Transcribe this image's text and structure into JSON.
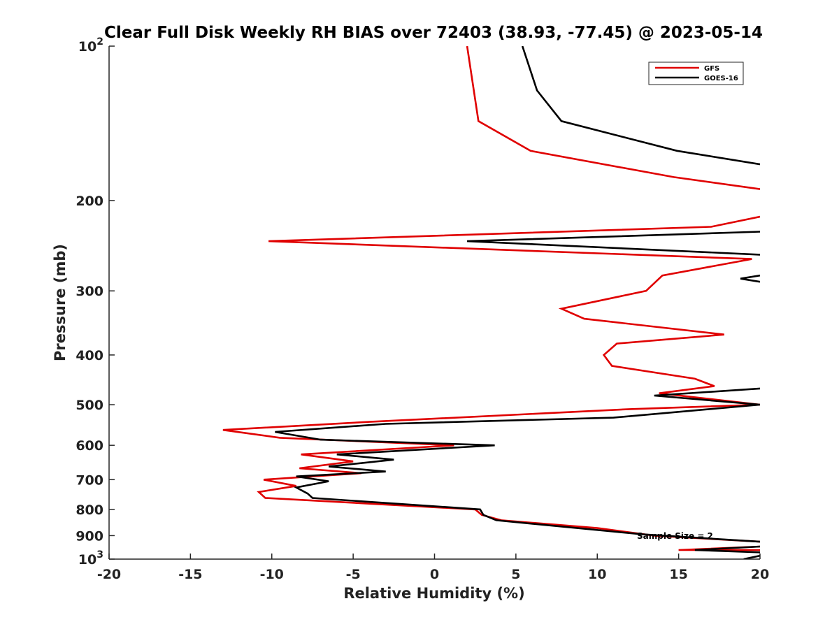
{
  "chart_data": {
    "type": "line",
    "title": "Clear Full Disk Weekly RH BIAS over 72403 (38.93, -77.45) @ 2023-05-14",
    "xlabel": "Relative Humidity (%)",
    "ylabel": "Pressure (mb)",
    "xlim": [
      -20,
      20
    ],
    "ylim": [
      100,
      1000
    ],
    "y_scale": "log",
    "y_reversed": true,
    "x_ticks": [
      "-20",
      "-15",
      "-10",
      "-5",
      "0",
      "5",
      "10",
      "15",
      "20"
    ],
    "y_ticks": [
      {
        "value": 100,
        "base": "10",
        "exp": "2"
      },
      {
        "value": 200,
        "label": "200"
      },
      {
        "value": 300,
        "label": "300"
      },
      {
        "value": 400,
        "label": "400"
      },
      {
        "value": 500,
        "label": "500"
      },
      {
        "value": 600,
        "label": "600"
      },
      {
        "value": 700,
        "label": "700"
      },
      {
        "value": 800,
        "label": "800"
      },
      {
        "value": 900,
        "label": "900"
      },
      {
        "value": 1000,
        "base": "10",
        "exp": "3"
      }
    ],
    "grid": false,
    "legend_position": "top-right",
    "annotation": "Sample Size = 2",
    "series": [
      {
        "name": "GFS",
        "color": "#e00000",
        "points": [
          [
            2.0,
            100
          ],
          [
            2.7,
            140
          ],
          [
            5.9,
            160
          ],
          [
            14.7,
            180
          ],
          [
            20,
            190
          ],
          [
            null,
            null
          ],
          [
            20,
            215
          ],
          [
            17.0,
            225
          ],
          [
            -10.2,
            240
          ],
          [
            19.5,
            260
          ],
          [
            14.0,
            280
          ],
          [
            13.0,
            300
          ],
          [
            7.8,
            325
          ],
          [
            9.2,
            340
          ],
          [
            17.8,
            365
          ],
          [
            11.2,
            380
          ],
          [
            10.4,
            400
          ],
          [
            10.9,
            420
          ],
          [
            16.0,
            445
          ],
          [
            17.2,
            460
          ],
          [
            13.8,
            475
          ],
          [
            20,
            500
          ],
          [
            12.0,
            510
          ],
          [
            -4.0,
            540
          ],
          [
            -13.0,
            560
          ],
          [
            -9.5,
            580
          ],
          [
            1.2,
            600
          ],
          [
            -8.2,
            625
          ],
          [
            -5.0,
            645
          ],
          [
            -8.3,
            665
          ],
          [
            -4.5,
            680
          ],
          [
            -10.5,
            700
          ],
          [
            -8.5,
            720
          ],
          [
            -10.8,
            740
          ],
          [
            -10.4,
            760
          ],
          [
            2.5,
            800
          ],
          [
            2.9,
            820
          ],
          [
            4.1,
            840
          ],
          [
            10.0,
            870
          ],
          [
            13.5,
            900
          ],
          [
            20,
            925
          ],
          [
            null,
            null
          ],
          [
            20,
            945
          ],
          [
            15.0,
            960
          ],
          [
            20,
            960
          ]
        ]
      },
      {
        "name": "GOES-16",
        "color": "#000000",
        "points": [
          [
            5.4,
            100
          ],
          [
            6.3,
            122
          ],
          [
            7.8,
            140
          ],
          [
            14.9,
            160
          ],
          [
            20,
            170
          ],
          [
            null,
            null
          ],
          [
            20,
            230
          ],
          [
            2.0,
            240
          ],
          [
            20,
            255
          ],
          [
            null,
            null
          ],
          [
            20,
            280
          ],
          [
            18.8,
            284
          ],
          [
            20,
            288
          ],
          [
            null,
            null
          ],
          [
            20,
            465
          ],
          [
            13.5,
            480
          ],
          [
            20,
            500
          ],
          [
            11.0,
            530
          ],
          [
            -3.0,
            545
          ],
          [
            -9.8,
            565
          ],
          [
            -7.0,
            585
          ],
          [
            3.7,
            600
          ],
          [
            -6.0,
            625
          ],
          [
            -2.5,
            640
          ],
          [
            -6.5,
            660
          ],
          [
            -3.0,
            675
          ],
          [
            -8.5,
            690
          ],
          [
            -6.5,
            705
          ],
          [
            -8.5,
            725
          ],
          [
            -7.8,
            745
          ],
          [
            -7.5,
            760
          ],
          [
            2.8,
            800
          ],
          [
            3.0,
            820
          ],
          [
            3.8,
            840
          ],
          [
            12.8,
            895
          ],
          [
            20,
            925
          ],
          [
            null,
            null
          ],
          [
            20,
            945
          ],
          [
            16.0,
            960
          ],
          [
            20,
            970
          ],
          [
            null,
            null
          ],
          [
            20,
            985
          ],
          [
            19.0,
            1000
          ]
        ]
      }
    ]
  }
}
